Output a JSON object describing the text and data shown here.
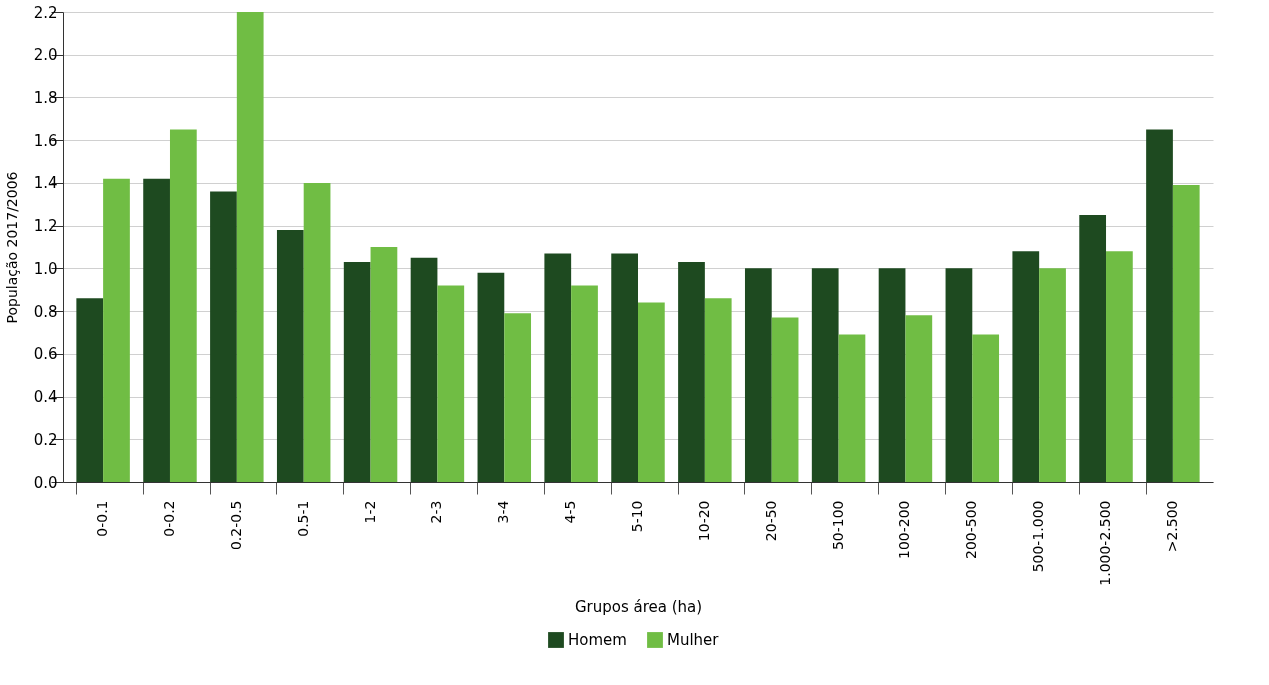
{
  "chart_data": {
    "type": "bar",
    "xlabel": "Grupos área (ha)",
    "ylabel": "População 2017/2006",
    "categories": [
      "0-0.1",
      "0-0.2",
      "0.2-0.5",
      "0.5-1",
      "1-2",
      "2-3",
      "3-4",
      "4-5",
      "5-10",
      "10-20",
      "20-50",
      "50-100",
      "100-200",
      "200-500",
      "500-1.000",
      "1.000-2.500",
      ">2.500"
    ],
    "series": [
      {
        "name": "Homem",
        "color": "#1e4a20",
        "values": [
          0.86,
          1.42,
          1.36,
          1.18,
          1.03,
          1.05,
          0.98,
          1.07,
          1.07,
          1.03,
          1.0,
          1.0,
          1.0,
          1.0,
          1.08,
          1.25,
          1.65
        ]
      },
      {
        "name": "Mulher",
        "color": "#70bd44",
        "values": [
          1.42,
          1.65,
          2.2,
          1.4,
          1.1,
          0.92,
          0.79,
          0.92,
          0.84,
          0.86,
          0.77,
          0.69,
          0.78,
          0.69,
          1.0,
          1.08,
          1.39
        ]
      }
    ],
    "ylim": [
      0,
      2.2
    ],
    "yticks": [
      {
        "value": 0,
        "label": "0.0"
      },
      0.2,
      0.4,
      0.6,
      0.8,
      {
        "value": 1,
        "label": "1.0"
      },
      1.2,
      1.4,
      1.6,
      1.8,
      {
        "value": 2,
        "label": "2.0"
      },
      2.2
    ],
    "grid": "y",
    "legend": "bottom"
  }
}
